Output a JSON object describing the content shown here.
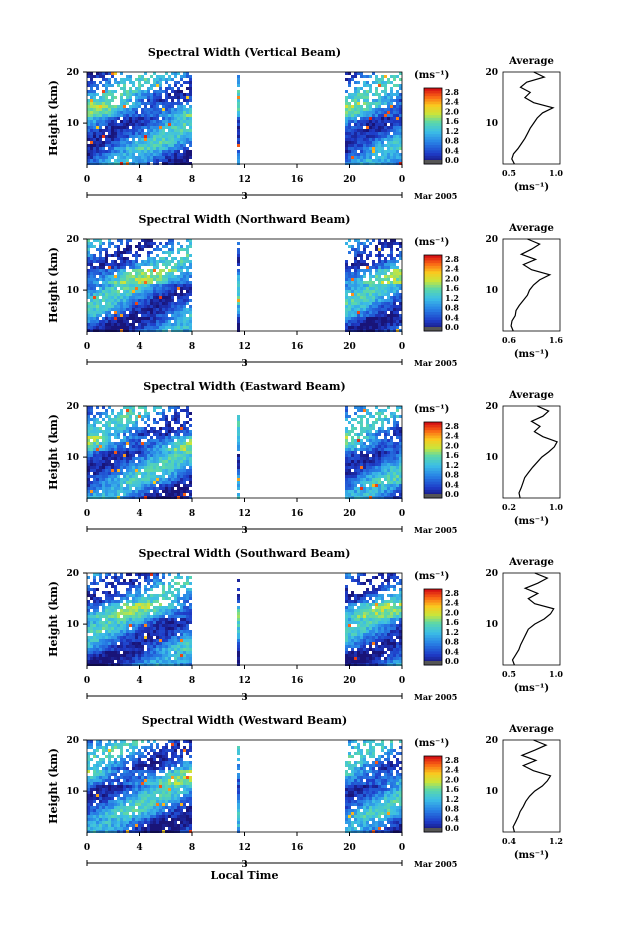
{
  "figure": {
    "xlabel": "Local Time",
    "date_label": "Mar 2005",
    "day_label": "3",
    "ylabel": "Height (km)",
    "colorbar_unit": "(ms⁻¹)",
    "avg_title": "Average",
    "avg_xlabel": "(ms⁻¹)"
  },
  "chart_data": [
    {
      "type": "heatmap",
      "title": "Spectral Width (Vertical Beam)",
      "xlabel": "Local Time",
      "ylabel": "Height (km)",
      "xlim": [
        0,
        24
      ],
      "ylim": [
        2,
        20
      ],
      "xticks": [
        "0",
        "4",
        "8",
        "12",
        "16",
        "20",
        "0"
      ],
      "yticks": [
        "10",
        "20"
      ],
      "colorbar": {
        "range": [
          0,
          2.8
        ],
        "ticks": [
          "2.8",
          "2.4",
          "2.0",
          "1.6",
          "1.2",
          "0.8",
          "0.4",
          "0.0"
        ]
      },
      "data_gaps_hours": [
        [
          8,
          11.4
        ],
        [
          11.7,
          18.2
        ],
        [
          18.4,
          19.7
        ]
      ],
      "average_profile": {
        "title": "Average",
        "xlim": [
          0.35,
          1.0
        ],
        "xticks": [
          "0.5",
          "1.0"
        ],
        "heights": [
          2,
          3,
          4,
          5,
          6,
          7,
          8,
          9,
          10,
          11,
          12,
          13,
          14,
          15,
          16,
          17,
          18,
          19,
          20
        ],
        "values": [
          0.48,
          0.45,
          0.47,
          0.52,
          0.56,
          0.6,
          0.63,
          0.66,
          0.7,
          0.74,
          0.8,
          0.92,
          0.7,
          0.6,
          0.66,
          0.55,
          0.62,
          0.82,
          0.7
        ]
      }
    },
    {
      "type": "heatmap",
      "title": "Spectral Width (Northward Beam)",
      "xlabel": "Local Time",
      "ylabel": "Height (km)",
      "xlim": [
        0,
        24
      ],
      "ylim": [
        2,
        20
      ],
      "xticks": [
        "0",
        "4",
        "8",
        "12",
        "16",
        "20",
        "0"
      ],
      "yticks": [
        "10",
        "20"
      ],
      "colorbar": {
        "range": [
          0,
          2.8
        ],
        "ticks": [
          "2.8",
          "2.4",
          "2.0",
          "1.6",
          "1.2",
          "0.8",
          "0.4",
          "0.0"
        ]
      },
      "data_gaps_hours": [
        [
          8,
          11.4
        ],
        [
          11.7,
          18.2
        ],
        [
          18.4,
          19.7
        ]
      ],
      "average_profile": {
        "title": "Average",
        "xlim": [
          0.4,
          1.8
        ],
        "xticks": [
          "0.6",
          "1.6"
        ],
        "heights": [
          2,
          3,
          4,
          5,
          6,
          7,
          8,
          9,
          10,
          11,
          12,
          13,
          14,
          15,
          16,
          17,
          18,
          19,
          20
        ],
        "values": [
          0.65,
          0.6,
          0.62,
          0.7,
          0.72,
          0.8,
          0.9,
          1.0,
          1.05,
          1.15,
          1.3,
          1.55,
          1.1,
          0.9,
          1.2,
          0.85,
          1.1,
          1.3,
          1.0
        ]
      }
    },
    {
      "type": "heatmap",
      "title": "Spectral Width (Eastward Beam)",
      "xlabel": "Local Time",
      "ylabel": "Height (km)",
      "xlim": [
        0,
        24
      ],
      "ylim": [
        2,
        20
      ],
      "xticks": [
        "0",
        "4",
        "8",
        "12",
        "16",
        "20",
        "0"
      ],
      "yticks": [
        "10",
        "20"
      ],
      "colorbar": {
        "range": [
          0,
          2.8
        ],
        "ticks": [
          "2.8",
          "2.4",
          "2.0",
          "1.6",
          "1.2",
          "0.8",
          "0.4",
          "0.0"
        ]
      },
      "data_gaps_hours": [
        [
          8,
          11.4
        ],
        [
          11.7,
          18.2
        ],
        [
          18.4,
          19.7
        ]
      ],
      "average_profile": {
        "title": "Average",
        "xlim": [
          0.1,
          1.1
        ],
        "xticks": [
          "0.2",
          "1.0"
        ],
        "heights": [
          2,
          3,
          4,
          5,
          6,
          7,
          8,
          9,
          10,
          11,
          12,
          13,
          14,
          15,
          16,
          17,
          18,
          19,
          20
        ],
        "values": [
          0.4,
          0.38,
          0.42,
          0.45,
          0.48,
          0.55,
          0.62,
          0.7,
          0.78,
          0.9,
          1.0,
          1.05,
          0.8,
          0.65,
          0.75,
          0.6,
          0.8,
          0.9,
          0.7
        ]
      }
    },
    {
      "type": "heatmap",
      "title": "Spectral Width (Southward Beam)",
      "xlabel": "Local Time",
      "ylabel": "Height (km)",
      "xlim": [
        0,
        24
      ],
      "ylim": [
        2,
        20
      ],
      "xticks": [
        "0",
        "4",
        "8",
        "12",
        "16",
        "20",
        "0"
      ],
      "yticks": [
        "10",
        "20"
      ],
      "colorbar": {
        "range": [
          0,
          2.8
        ],
        "ticks": [
          "2.8",
          "2.4",
          "2.0",
          "1.6",
          "1.2",
          "0.8",
          "0.4",
          "0.0"
        ]
      },
      "data_gaps_hours": [
        [
          8,
          11.4
        ],
        [
          11.7,
          18.2
        ],
        [
          18.4,
          19.7
        ]
      ],
      "average_profile": {
        "title": "Average",
        "xlim": [
          0.3,
          1.2
        ],
        "xticks": [
          "0.5",
          "1.0"
        ],
        "heights": [
          2,
          3,
          4,
          5,
          6,
          7,
          8,
          9,
          10,
          11,
          12,
          13,
          14,
          15,
          16,
          17,
          18,
          19,
          20
        ],
        "values": [
          0.48,
          0.45,
          0.5,
          0.55,
          0.58,
          0.62,
          0.66,
          0.7,
          0.8,
          0.95,
          1.05,
          1.1,
          0.8,
          0.7,
          0.85,
          0.65,
          0.85,
          1.0,
          0.8
        ]
      }
    },
    {
      "type": "heatmap",
      "title": "Spectral Width (Westward Beam)",
      "xlabel": "Local Time",
      "ylabel": "Height (km)",
      "xlim": [
        0,
        24
      ],
      "ylim": [
        2,
        20
      ],
      "xticks": [
        "0",
        "4",
        "8",
        "12",
        "16",
        "20",
        "0"
      ],
      "yticks": [
        "10",
        "20"
      ],
      "colorbar": {
        "range": [
          0,
          2.8
        ],
        "ticks": [
          "2.8",
          "2.4",
          "2.0",
          "1.6",
          "1.2",
          "0.8",
          "0.4",
          "0.0"
        ]
      },
      "data_gaps_hours": [
        [
          8,
          11.4
        ],
        [
          11.7,
          18.2
        ],
        [
          18.4,
          19.7
        ]
      ],
      "average_profile": {
        "title": "Average",
        "xlim": [
          0.3,
          1.2
        ],
        "xticks": [
          "0.4",
          "1.2"
        ],
        "heights": [
          2,
          3,
          4,
          5,
          6,
          7,
          8,
          9,
          10,
          11,
          12,
          13,
          14,
          15,
          16,
          17,
          18,
          19,
          20
        ],
        "values": [
          0.48,
          0.46,
          0.5,
          0.54,
          0.57,
          0.62,
          0.66,
          0.72,
          0.8,
          0.92,
          1.0,
          1.05,
          0.78,
          0.62,
          0.82,
          0.6,
          0.8,
          0.98,
          0.78
        ]
      }
    }
  ]
}
